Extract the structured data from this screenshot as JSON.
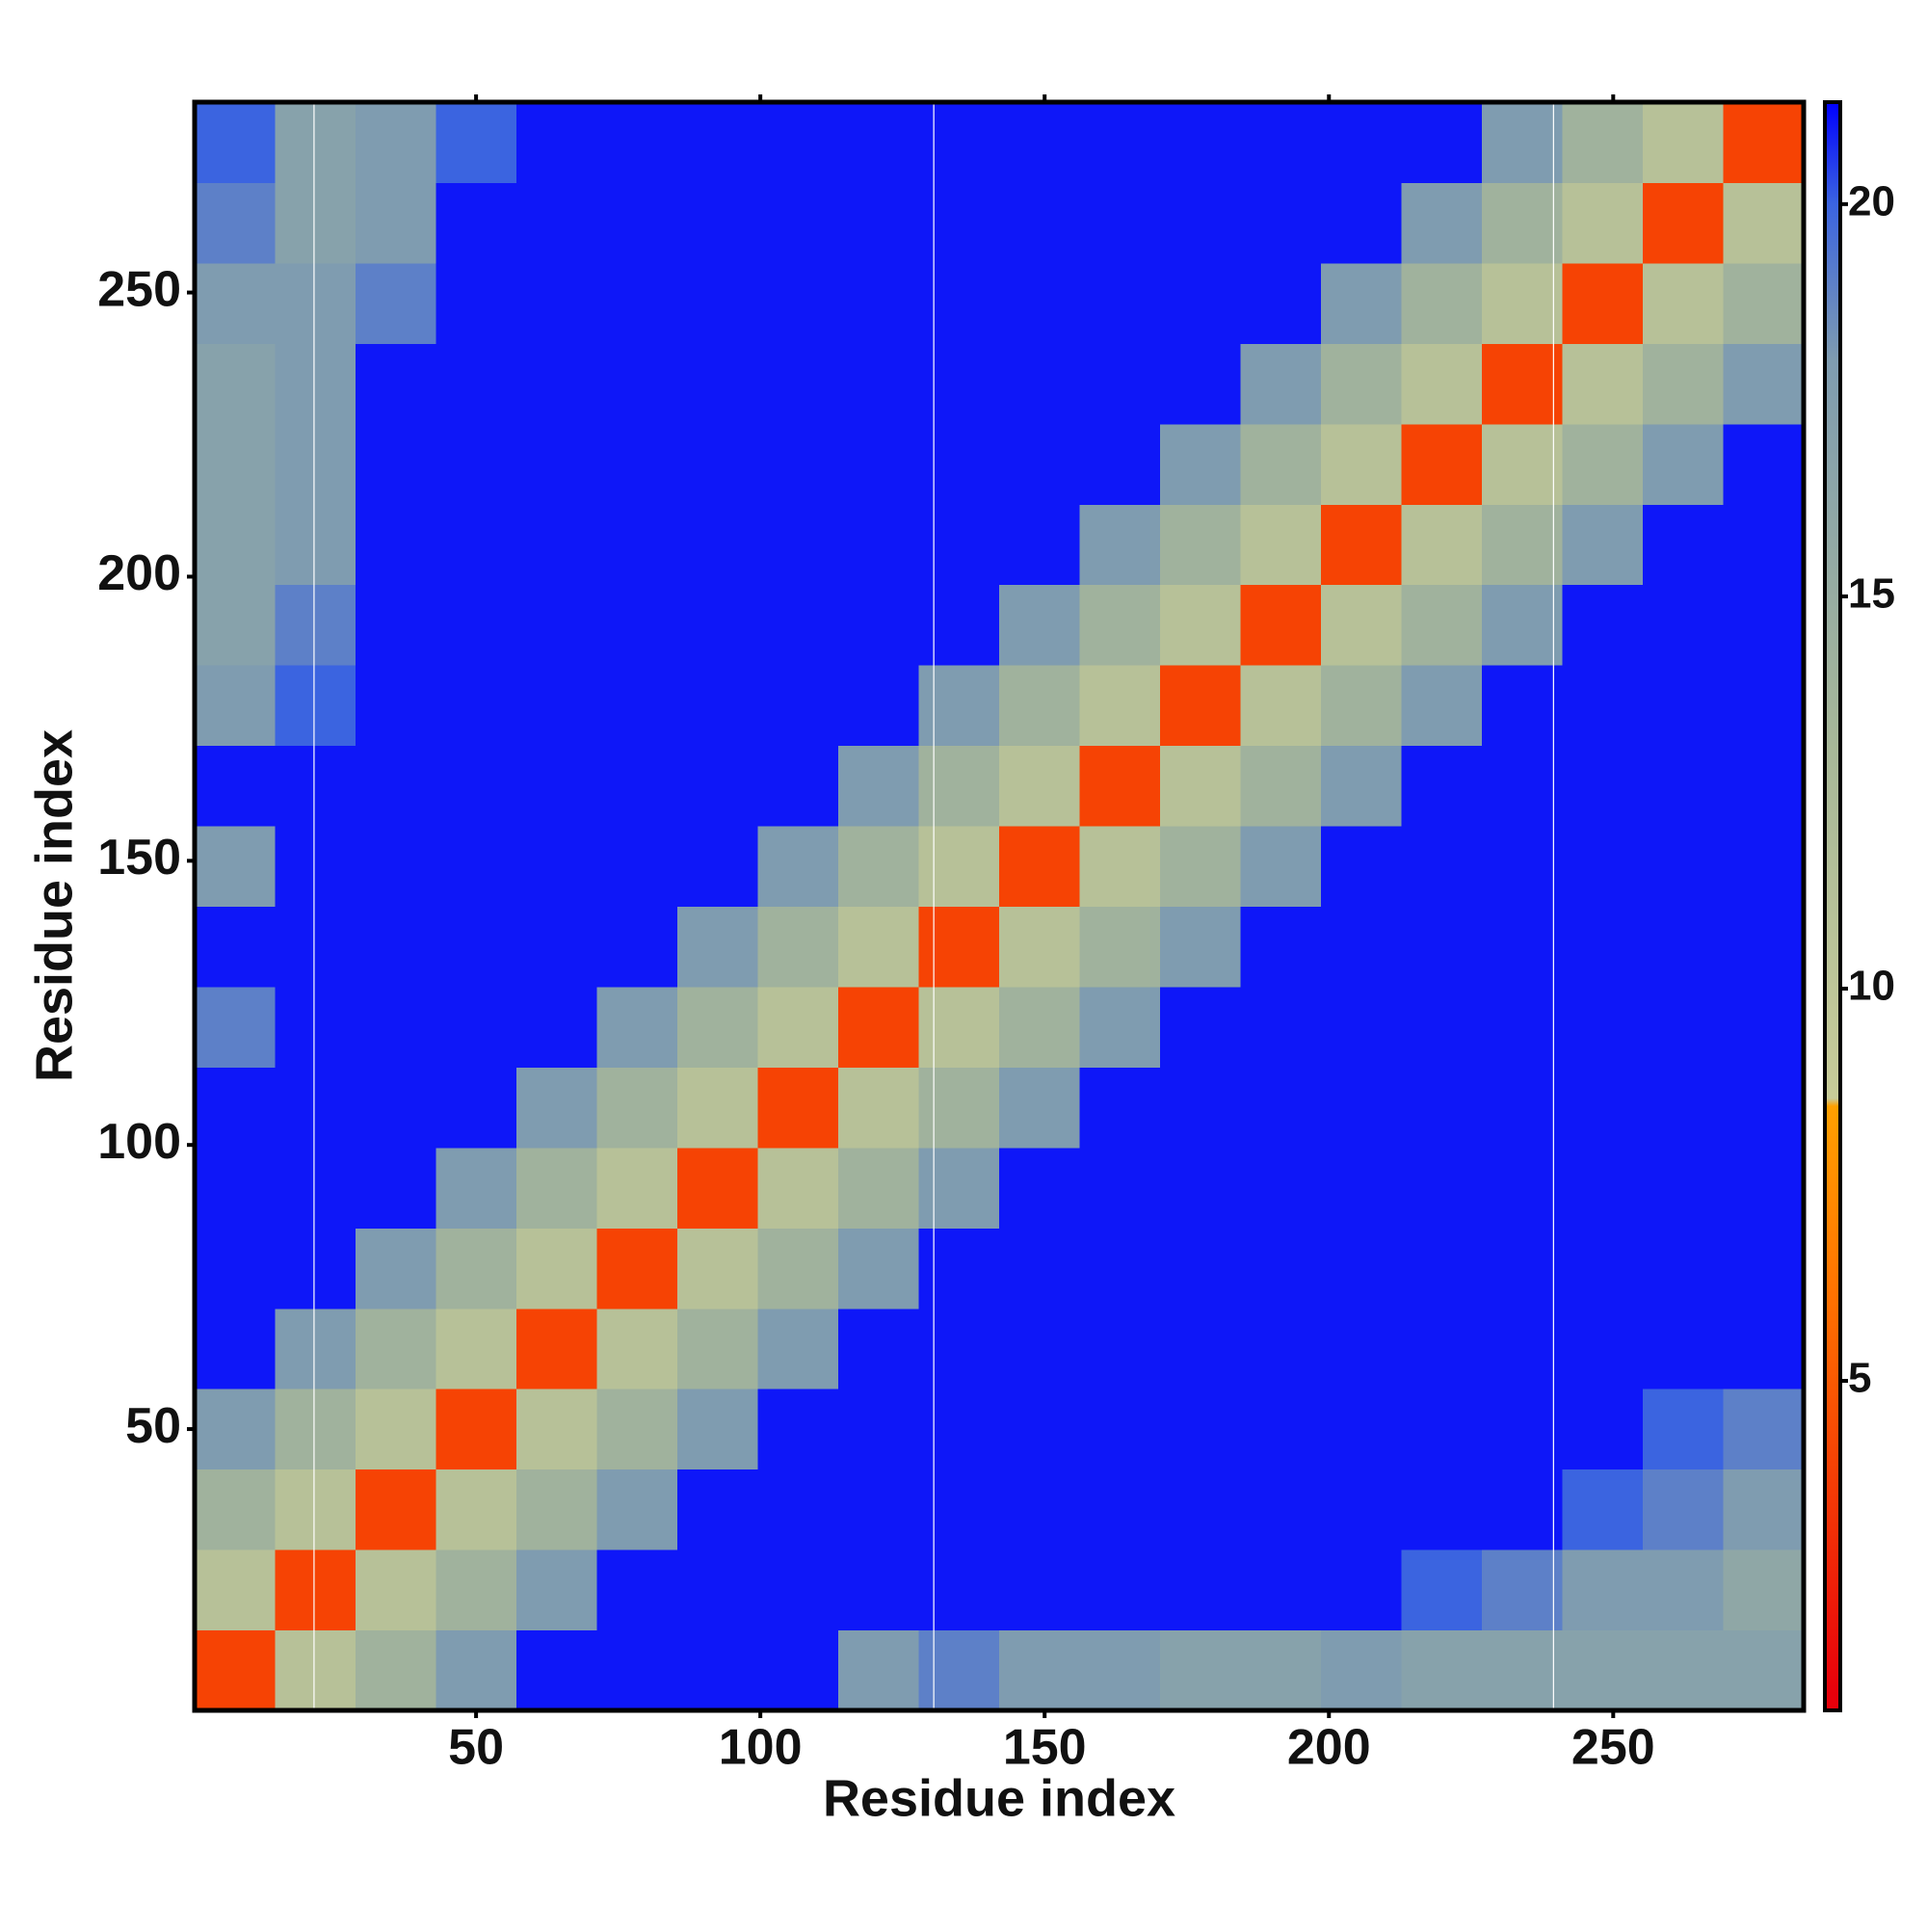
{
  "chart_data": {
    "type": "heatmap",
    "xlabel": "Residue index",
    "ylabel": "Residue index",
    "xlim": [
      0.5,
      283.5
    ],
    "ylim": [
      0.5,
      283.5
    ],
    "xticks": [
      50,
      100,
      150,
      200,
      250
    ],
    "yticks": [
      50,
      100,
      150,
      200,
      250
    ],
    "xbins": [
      0.5,
      14.65,
      28.8,
      42.95,
      57.1,
      71.25,
      85.4,
      99.55,
      113.7,
      127.85,
      142,
      156.15,
      170.3,
      184.45,
      198.6,
      212.75,
      226.9,
      241.05,
      255.2,
      269.35,
      283.5
    ],
    "ybins": [
      0.5,
      14.65,
      28.8,
      42.95,
      57.1,
      71.25,
      85.4,
      99.55,
      113.7,
      127.85,
      142,
      156.15,
      170.3,
      184.45,
      198.6,
      212.75,
      226.9,
      241.05,
      255.2,
      269.35,
      283.5
    ],
    "z": [
      [
        4,
        11,
        14,
        18,
        21,
        21,
        21,
        21,
        18,
        19,
        18,
        18,
        17,
        17,
        18,
        17,
        17,
        17,
        17,
        17
      ],
      [
        11,
        4,
        11,
        14,
        18,
        21,
        21,
        21,
        21,
        21,
        21,
        21,
        21,
        21,
        21,
        20,
        19,
        18,
        18,
        16
      ],
      [
        14,
        11,
        4,
        11,
        14,
        18,
        21,
        21,
        21,
        21,
        21,
        21,
        21,
        21,
        21,
        21,
        21,
        20,
        19,
        18
      ],
      [
        18,
        14,
        11,
        4,
        11,
        14,
        18,
        21,
        21,
        21,
        21,
        21,
        21,
        21,
        21,
        21,
        21,
        21,
        20,
        19
      ],
      [
        21,
        18,
        14,
        11,
        4,
        11,
        14,
        18,
        21,
        21,
        21,
        21,
        21,
        21,
        21,
        21,
        21,
        21,
        21,
        21
      ],
      [
        21,
        21,
        18,
        14,
        11,
        4,
        11,
        14,
        18,
        21,
        21,
        21,
        21,
        21,
        21,
        21,
        21,
        21,
        21,
        21
      ],
      [
        21,
        21,
        21,
        18,
        14,
        11,
        4,
        11,
        14,
        18,
        21,
        21,
        21,
        21,
        21,
        21,
        21,
        21,
        21,
        21
      ],
      [
        21,
        21,
        21,
        21,
        18,
        14,
        11,
        4,
        11,
        14,
        18,
        21,
        21,
        21,
        21,
        21,
        21,
        21,
        21,
        21
      ],
      [
        19,
        21,
        21,
        21,
        21,
        18,
        14,
        11,
        4,
        11,
        14,
        18,
        21,
        21,
        21,
        21,
        21,
        21,
        21,
        21
      ],
      [
        21,
        21,
        21,
        21,
        21,
        21,
        18,
        14,
        11,
        4,
        11,
        14,
        18,
        21,
        21,
        21,
        21,
        21,
        21,
        21
      ],
      [
        18,
        21,
        21,
        21,
        21,
        21,
        21,
        18,
        14,
        11,
        4,
        11,
        14,
        18,
        21,
        21,
        21,
        21,
        21,
        21
      ],
      [
        21,
        21,
        21,
        21,
        21,
        21,
        21,
        21,
        18,
        14,
        11,
        4,
        11,
        14,
        18,
        21,
        21,
        21,
        21,
        21
      ],
      [
        18,
        20,
        21,
        21,
        21,
        21,
        21,
        21,
        21,
        18,
        14,
        11,
        4,
        11,
        14,
        18,
        21,
        21,
        21,
        21
      ],
      [
        17,
        19,
        21,
        21,
        21,
        21,
        21,
        21,
        21,
        21,
        18,
        14,
        11,
        4,
        11,
        14,
        18,
        21,
        21,
        21
      ],
      [
        17,
        18,
        21,
        21,
        21,
        21,
        21,
        21,
        21,
        21,
        21,
        18,
        14,
        11,
        4,
        11,
        14,
        18,
        21,
        21
      ],
      [
        17,
        18,
        21,
        21,
        21,
        21,
        21,
        21,
        21,
        21,
        21,
        21,
        18,
        14,
        11,
        4,
        11,
        14,
        18,
        21
      ],
      [
        17,
        18,
        21,
        21,
        21,
        21,
        21,
        21,
        21,
        21,
        21,
        21,
        21,
        18,
        14,
        11,
        4,
        11,
        14,
        18
      ],
      [
        18,
        18,
        19,
        21,
        21,
        21,
        21,
        21,
        21,
        21,
        21,
        21,
        21,
        21,
        18,
        14,
        11,
        4,
        11,
        14
      ],
      [
        19,
        17,
        18,
        21,
        21,
        21,
        21,
        21,
        21,
        21,
        21,
        21,
        21,
        21,
        21,
        18,
        14,
        11,
        4,
        11
      ],
      [
        20,
        17,
        18,
        20,
        21,
        21,
        21,
        21,
        21,
        21,
        21,
        21,
        21,
        21,
        21,
        21,
        18,
        14,
        11,
        4
      ]
    ],
    "colorscale": [
      [
        1,
        "#e8000b"
      ],
      [
        6,
        "#ff7000"
      ],
      [
        8.5,
        "#ffa000"
      ],
      [
        8.6,
        "#c8cc98"
      ],
      [
        13,
        "#a8b898"
      ],
      [
        18,
        "#7f9cb0"
      ],
      [
        20,
        "#3b64e0"
      ],
      [
        21.3,
        "#0000ff"
      ]
    ],
    "clim": [
      0.8,
      21.3
    ],
    "cticks": [
      5,
      10,
      15,
      20
    ],
    "vlines": [
      21.5,
      130.5,
      239.5
    ]
  }
}
